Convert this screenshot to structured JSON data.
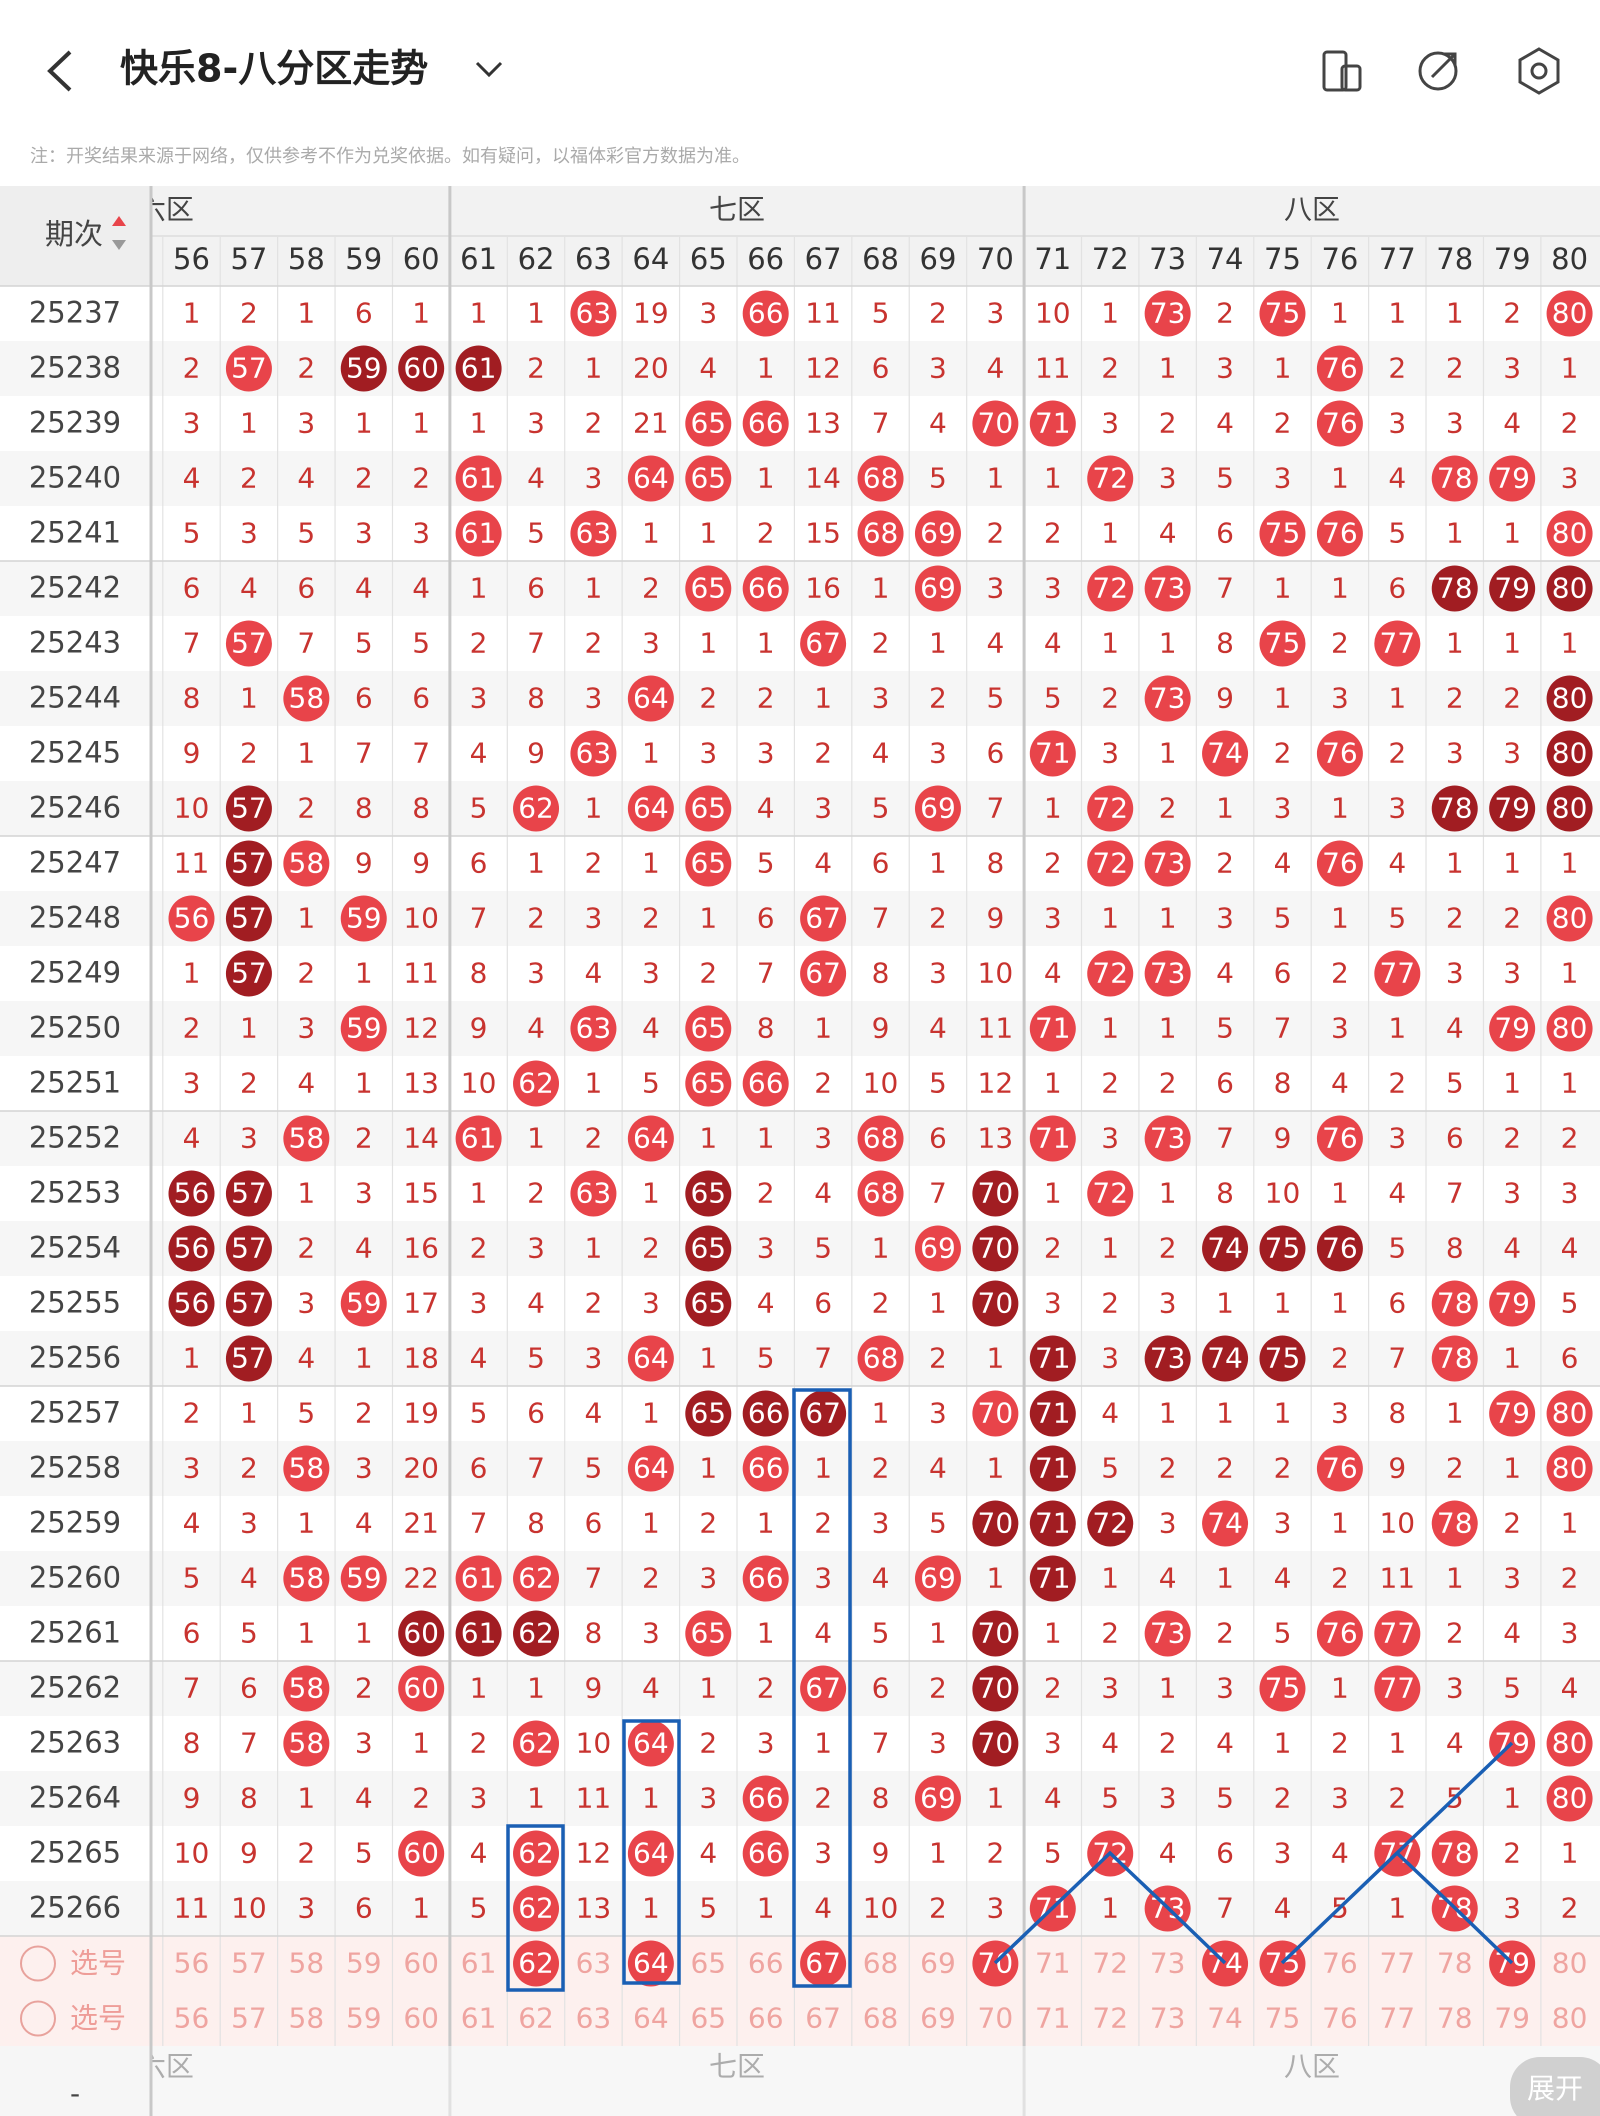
{
  "header": {
    "title": "快乐8-八分区走势",
    "note": "注：开奖结果来源于网络，仅供参考不作为兑奖依据。如有疑问，以福体彩官方数据为准。"
  },
  "table": {
    "period_label": "期次",
    "zones": [
      "六区",
      "七区",
      "八区"
    ],
    "columns": [
      56,
      57,
      58,
      59,
      60,
      61,
      62,
      63,
      64,
      65,
      66,
      67,
      68,
      69,
      70,
      71,
      72,
      73,
      74,
      75,
      76,
      77,
      78,
      79,
      80
    ],
    "rows": [
      {
        "period": 25237,
        "values": [
          1,
          2,
          1,
          6,
          1,
          1,
          1,
          63,
          19,
          3,
          66,
          11,
          5,
          2,
          3,
          10,
          1,
          73,
          2,
          75,
          1,
          1,
          1,
          2,
          80
        ]
      },
      {
        "period": 25238,
        "values": [
          2,
          57,
          2,
          59,
          60,
          61,
          2,
          1,
          20,
          4,
          1,
          12,
          6,
          3,
          4,
          11,
          2,
          1,
          3,
          1,
          76,
          2,
          2,
          3,
          1
        ]
      },
      {
        "period": 25239,
        "values": [
          3,
          1,
          3,
          1,
          1,
          1,
          3,
          2,
          21,
          65,
          66,
          13,
          7,
          4,
          70,
          71,
          3,
          2,
          4,
          2,
          76,
          3,
          3,
          4,
          2
        ]
      },
      {
        "period": 25240,
        "values": [
          4,
          2,
          4,
          2,
          2,
          61,
          4,
          3,
          64,
          65,
          1,
          14,
          68,
          5,
          1,
          1,
          72,
          3,
          5,
          3,
          1,
          4,
          78,
          79,
          3
        ]
      },
      {
        "period": 25241,
        "values": [
          5,
          3,
          5,
          3,
          3,
          61,
          5,
          63,
          1,
          1,
          2,
          15,
          68,
          69,
          2,
          2,
          1,
          4,
          6,
          75,
          76,
          5,
          1,
          1,
          80
        ]
      },
      {
        "period": 25242,
        "values": [
          6,
          4,
          6,
          4,
          4,
          1,
          6,
          1,
          2,
          65,
          66,
          16,
          1,
          69,
          3,
          3,
          72,
          73,
          7,
          1,
          1,
          6,
          78,
          79,
          80
        ]
      },
      {
        "period": 25243,
        "values": [
          7,
          57,
          7,
          5,
          5,
          2,
          7,
          2,
          3,
          1,
          1,
          67,
          2,
          1,
          4,
          4,
          1,
          1,
          8,
          75,
          2,
          77,
          1,
          1,
          1
        ]
      },
      {
        "period": 25244,
        "values": [
          8,
          1,
          58,
          6,
          6,
          3,
          8,
          3,
          64,
          2,
          2,
          1,
          3,
          2,
          5,
          5,
          2,
          73,
          9,
          1,
          3,
          1,
          2,
          2,
          80
        ]
      },
      {
        "period": 25245,
        "values": [
          9,
          2,
          1,
          7,
          7,
          4,
          9,
          63,
          1,
          3,
          3,
          2,
          4,
          3,
          6,
          71,
          3,
          1,
          74,
          2,
          76,
          2,
          3,
          3,
          80
        ]
      },
      {
        "period": 25246,
        "values": [
          10,
          57,
          2,
          8,
          8,
          5,
          62,
          1,
          64,
          65,
          4,
          3,
          5,
          69,
          7,
          1,
          72,
          2,
          1,
          3,
          1,
          3,
          78,
          79,
          80
        ]
      },
      {
        "period": 25247,
        "values": [
          11,
          57,
          58,
          9,
          9,
          6,
          1,
          2,
          1,
          65,
          5,
          4,
          6,
          1,
          8,
          2,
          72,
          73,
          2,
          4,
          76,
          4,
          1,
          1,
          1
        ]
      },
      {
        "period": 25248,
        "values": [
          56,
          57,
          1,
          59,
          10,
          7,
          2,
          3,
          2,
          1,
          6,
          67,
          7,
          2,
          9,
          3,
          1,
          1,
          3,
          5,
          1,
          5,
          2,
          2,
          80
        ]
      },
      {
        "period": 25249,
        "values": [
          1,
          57,
          2,
          1,
          11,
          8,
          3,
          4,
          3,
          2,
          7,
          67,
          8,
          3,
          10,
          4,
          72,
          73,
          4,
          6,
          2,
          77,
          3,
          3,
          1
        ]
      },
      {
        "period": 25250,
        "values": [
          2,
          1,
          3,
          59,
          12,
          9,
          4,
          63,
          4,
          65,
          8,
          1,
          9,
          4,
          11,
          71,
          1,
          1,
          5,
          7,
          3,
          1,
          4,
          79,
          80
        ]
      },
      {
        "period": 25251,
        "values": [
          3,
          2,
          4,
          1,
          13,
          10,
          62,
          1,
          5,
          65,
          66,
          2,
          10,
          5,
          12,
          1,
          2,
          2,
          6,
          8,
          4,
          2,
          5,
          1,
          1
        ]
      },
      {
        "period": 25252,
        "values": [
          4,
          3,
          58,
          2,
          14,
          61,
          1,
          2,
          64,
          1,
          1,
          3,
          68,
          6,
          13,
          71,
          3,
          73,
          7,
          9,
          76,
          3,
          6,
          2,
          2
        ]
      },
      {
        "period": 25253,
        "values": [
          56,
          57,
          1,
          3,
          15,
          1,
          2,
          63,
          1,
          65,
          2,
          4,
          68,
          7,
          70,
          1,
          72,
          1,
          8,
          10,
          1,
          4,
          7,
          3,
          3
        ]
      },
      {
        "period": 25254,
        "values": [
          56,
          57,
          2,
          4,
          16,
          2,
          3,
          1,
          2,
          65,
          3,
          5,
          1,
          69,
          70,
          2,
          1,
          2,
          74,
          75,
          76,
          5,
          8,
          4,
          4
        ]
      },
      {
        "period": 25255,
        "values": [
          56,
          57,
          3,
          59,
          17,
          3,
          4,
          2,
          3,
          65,
          4,
          6,
          2,
          1,
          70,
          3,
          2,
          3,
          1,
          1,
          1,
          6,
          78,
          79,
          5
        ]
      },
      {
        "period": 25256,
        "values": [
          1,
          57,
          4,
          1,
          18,
          4,
          5,
          3,
          64,
          1,
          5,
          7,
          68,
          2,
          1,
          71,
          3,
          73,
          74,
          75,
          2,
          7,
          78,
          1,
          6
        ]
      },
      {
        "period": 25257,
        "values": [
          2,
          1,
          5,
          2,
          19,
          5,
          6,
          4,
          1,
          65,
          66,
          67,
          1,
          3,
          70,
          71,
          4,
          1,
          1,
          1,
          3,
          8,
          1,
          79,
          80
        ]
      },
      {
        "period": 25258,
        "values": [
          3,
          2,
          58,
          3,
          20,
          6,
          7,
          5,
          64,
          1,
          66,
          1,
          2,
          4,
          1,
          71,
          5,
          2,
          2,
          2,
          76,
          9,
          2,
          1,
          80
        ]
      },
      {
        "period": 25259,
        "values": [
          4,
          3,
          1,
          4,
          21,
          7,
          8,
          6,
          1,
          2,
          1,
          2,
          3,
          5,
          70,
          71,
          72,
          3,
          74,
          3,
          1,
          10,
          78,
          2,
          1
        ]
      },
      {
        "period": 25260,
        "values": [
          5,
          4,
          58,
          59,
          22,
          61,
          62,
          7,
          2,
          3,
          66,
          3,
          4,
          69,
          1,
          71,
          1,
          4,
          1,
          4,
          2,
          11,
          1,
          3,
          2
        ]
      },
      {
        "period": 25261,
        "values": [
          6,
          5,
          1,
          1,
          60,
          61,
          62,
          8,
          3,
          65,
          1,
          4,
          5,
          1,
          70,
          1,
          2,
          73,
          2,
          5,
          76,
          77,
          2,
          4,
          3
        ]
      },
      {
        "period": 25262,
        "values": [
          7,
          6,
          58,
          2,
          60,
          1,
          1,
          9,
          4,
          1,
          2,
          67,
          6,
          2,
          70,
          2,
          3,
          1,
          3,
          75,
          1,
          77,
          3,
          5,
          4
        ]
      },
      {
        "period": 25263,
        "values": [
          8,
          7,
          58,
          3,
          1,
          2,
          62,
          10,
          64,
          2,
          3,
          1,
          7,
          3,
          70,
          3,
          4,
          2,
          4,
          1,
          2,
          1,
          4,
          79,
          80
        ]
      },
      {
        "period": 25264,
        "values": [
          9,
          8,
          1,
          4,
          2,
          3,
          1,
          11,
          1,
          3,
          66,
          2,
          8,
          69,
          1,
          4,
          5,
          3,
          5,
          2,
          3,
          2,
          5,
          1,
          80
        ]
      },
      {
        "period": 25265,
        "values": [
          10,
          9,
          2,
          5,
          60,
          4,
          62,
          12,
          64,
          4,
          66,
          3,
          9,
          1,
          2,
          5,
          72,
          4,
          6,
          3,
          4,
          77,
          78,
          2,
          1
        ]
      },
      {
        "period": 25266,
        "values": [
          11,
          10,
          3,
          6,
          1,
          5,
          62,
          13,
          1,
          5,
          1,
          4,
          10,
          2,
          3,
          71,
          1,
          73,
          7,
          4,
          5,
          1,
          78,
          3,
          2
        ]
      }
    ],
    "select_rows": [
      {
        "label": "选号",
        "values": [
          56,
          57,
          58,
          59,
          60,
          61,
          62,
          63,
          64,
          65,
          66,
          67,
          68,
          69,
          70,
          71,
          72,
          73,
          74,
          75,
          76,
          77,
          78,
          79,
          80
        ],
        "selected": [
          62,
          64,
          67,
          70,
          74,
          75,
          79
        ]
      },
      {
        "label": "选号",
        "values": [
          56,
          57,
          58,
          59,
          60,
          61,
          62,
          63,
          64,
          65,
          66,
          67,
          68,
          69,
          70,
          71,
          72,
          73,
          74,
          75,
          76,
          77,
          78,
          79,
          80
        ],
        "selected": []
      }
    ]
  },
  "footer": {
    "dash": "-",
    "expand": "展开"
  }
}
